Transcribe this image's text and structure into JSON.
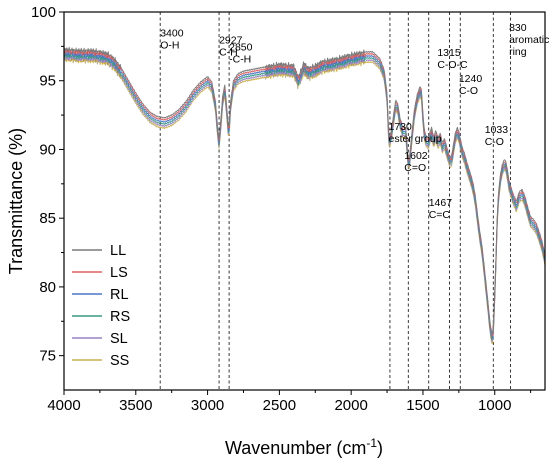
{
  "chart_data": {
    "type": "line",
    "title": "",
    "xlabel_main": "Wavenumber (cm",
    "xlabel_sup": "-1",
    "xlabel_end": ")",
    "ylabel": "Transmittance (%)",
    "xlim": [
      4000,
      650
    ],
    "ylim": [
      72.5,
      100
    ],
    "x_reversed": true,
    "grid": false,
    "legend_position": "bottom-left",
    "x_ticks": [
      4000,
      3500,
      3000,
      2500,
      2000,
      1500,
      1000
    ],
    "x_tick_labels": [
      "4000",
      "3500",
      "3000",
      "2500",
      "2000",
      "1500",
      "1000"
    ],
    "y_ticks": [
      75,
      80,
      85,
      90,
      95,
      100
    ],
    "y_tick_labels": [
      "75",
      "80",
      "85",
      "90",
      "95",
      "100"
    ],
    "reference_lines": [
      3330,
      2920,
      2850,
      1730,
      1602,
      1460,
      1315,
      1240,
      1010,
      890
    ],
    "annotations": [
      {
        "lines": [
          "3400",
          "O-H"
        ],
        "x": 3330,
        "y": 98.2
      },
      {
        "lines": [
          "2927",
          "C-H"
        ],
        "x": 2920,
        "y": 97.7
      },
      {
        "lines": [
          "2850",
          "-C-H"
        ],
        "x": 2850,
        "y": 97.2
      },
      {
        "lines": [
          "1730",
          "ester group"
        ],
        "x": 1740,
        "y": 91.4
      },
      {
        "lines": [
          "1602",
          "C=O"
        ],
        "x": 1630,
        "y": 89.3
      },
      {
        "lines": [
          "1467",
          "C=C"
        ],
        "x": 1460,
        "y": 85.9
      },
      {
        "lines": [
          "1315",
          "C-O-C"
        ],
        "x": 1400,
        "y": 96.8
      },
      {
        "lines": [
          "1240",
          "C-O"
        ],
        "x": 1250,
        "y": 94.9
      },
      {
        "lines": [
          "1033",
          "C-O"
        ],
        "x": 1070,
        "y": 91.2
      },
      {
        "lines": [
          "830",
          "aromatic",
          "ring"
        ],
        "x": 900,
        "y": 98.6
      }
    ],
    "series": [
      {
        "name": "LL",
        "color": "#7a7a7a",
        "offset": 0.3
      },
      {
        "name": "LS",
        "color": "#e06060",
        "offset": 0.15
      },
      {
        "name": "RL",
        "color": "#4a78c8",
        "offset": 0.0
      },
      {
        "name": "RS",
        "color": "#3a9a86",
        "offset": -0.15
      },
      {
        "name": "SL",
        "color": "#9a82c4",
        "offset": -0.3
      },
      {
        "name": "SS",
        "color": "#c8b050",
        "offset": -0.45
      }
    ],
    "base_curve": {
      "x": [
        4000,
        3900,
        3800,
        3700,
        3650,
        3600,
        3550,
        3500,
        3450,
        3400,
        3350,
        3300,
        3250,
        3200,
        3150,
        3100,
        3050,
        3000,
        2970,
        2945,
        2930,
        2920,
        2910,
        2895,
        2880,
        2865,
        2855,
        2848,
        2840,
        2820,
        2790,
        2750,
        2700,
        2600,
        2500,
        2400,
        2370,
        2350,
        2330,
        2300,
        2250,
        2200,
        2100,
        2000,
        1900,
        1850,
        1800,
        1770,
        1750,
        1740,
        1735,
        1720,
        1705,
        1690,
        1675,
        1660,
        1640,
        1620,
        1605,
        1595,
        1580,
        1560,
        1540,
        1520,
        1510,
        1500,
        1490,
        1475,
        1462,
        1450,
        1440,
        1425,
        1410,
        1395,
        1380,
        1365,
        1350,
        1335,
        1320,
        1310,
        1300,
        1290,
        1275,
        1260,
        1250,
        1240,
        1225,
        1210,
        1195,
        1180,
        1165,
        1150,
        1135,
        1120,
        1105,
        1090,
        1075,
        1060,
        1045,
        1035,
        1025,
        1018,
        1010,
        1003,
        996,
        990,
        985,
        978,
        970,
        960,
        950,
        940,
        930,
        920,
        910,
        900,
        885,
        870,
        860,
        850,
        830,
        810,
        790,
        770,
        750,
        730,
        710,
        690,
        670,
        650
      ],
      "y": [
        97.0,
        96.9,
        96.9,
        96.7,
        96.3,
        95.6,
        94.7,
        93.8,
        93.0,
        92.4,
        92.1,
        92.0,
        92.2,
        92.6,
        93.2,
        94.0,
        94.6,
        95.0,
        94.6,
        93.2,
        91.3,
        90.5,
        91.6,
        93.6,
        94.4,
        92.6,
        91.3,
        91.8,
        93.2,
        94.7,
        95.2,
        95.4,
        95.5,
        95.7,
        95.9,
        95.8,
        95.0,
        95.4,
        96.0,
        95.6,
        95.8,
        96.1,
        96.3,
        96.6,
        96.8,
        96.8,
        96.3,
        95.5,
        93.8,
        91.3,
        90.5,
        91.1,
        92.2,
        93.3,
        93.0,
        92.0,
        91.3,
        91.3,
        89.3,
        89.0,
        90.6,
        92.6,
        93.7,
        94.3,
        94.0,
        92.3,
        91.1,
        90.6,
        90.5,
        91.0,
        91.3,
        90.6,
        91.1,
        90.5,
        90.9,
        90.2,
        90.5,
        89.9,
        89.4,
        89.1,
        89.3,
        89.9,
        90.9,
        91.3,
        91.0,
        90.5,
        89.8,
        89.4,
        88.8,
        88.3,
        87.8,
        87.2,
        86.3,
        85.0,
        83.8,
        82.8,
        81.4,
        79.9,
        78.4,
        77.3,
        76.6,
        76.2,
        76.9,
        78.6,
        80.6,
        82.4,
        84.3,
        85.9,
        87.0,
        87.9,
        88.5,
        88.8,
        89.0,
        88.7,
        88.1,
        87.4,
        86.9,
        86.4,
        86.2,
        85.9,
        86.6,
        86.8,
        86.3,
        85.5,
        84.8,
        84.6,
        84.3,
        83.7,
        83.0,
        82.0
      ]
    }
  },
  "legend": {
    "title": "",
    "entries": [
      "LL",
      "LS",
      "RL",
      "RS",
      "SL",
      "SS"
    ]
  }
}
